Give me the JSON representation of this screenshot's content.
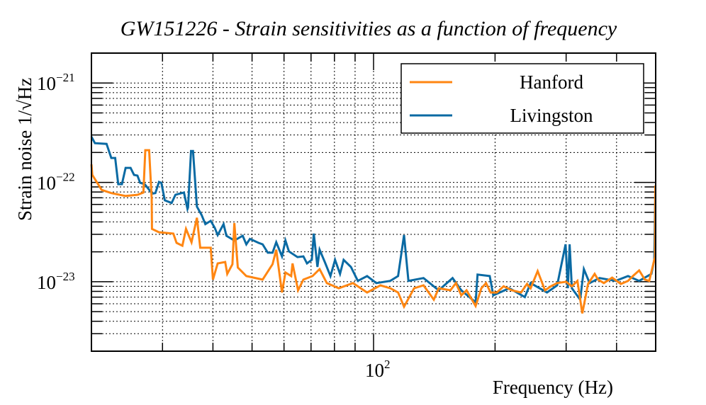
{
  "chart_data": {
    "type": "line",
    "title": "GW151226 - Strain sensitivities as a function of frequency",
    "xlabel": "Frequency (Hz)",
    "ylabel": "Strain noise 1/√Hz",
    "xscale": "log",
    "yscale": "log",
    "xlim": [
      20,
      500
    ],
    "ylim": [
      2e-24,
      2e-21
    ],
    "y_unit_multiplier": 1e-23,
    "grid": true,
    "legend_position": "top-right",
    "x_ticks": [
      {
        "value": 100,
        "base": "10",
        "exp": "2"
      }
    ],
    "y_ticks": [
      {
        "value": 1e-21,
        "base": "10",
        "exp": "−21"
      },
      {
        "value": 1e-22,
        "base": "10",
        "exp": "−22"
      },
      {
        "value": 1e-23,
        "base": "10",
        "exp": "−23"
      }
    ],
    "series": [
      {
        "name": "Hanford",
        "color": "#ff8612",
        "points": [
          [
            20,
            15.2
          ],
          [
            20.1,
            11.9
          ],
          [
            21.2,
            8.4
          ],
          [
            22.4,
            7.8
          ],
          [
            24.3,
            7.3
          ],
          [
            26,
            7.5
          ],
          [
            26.9,
            7.9
          ],
          [
            27.2,
            21.1
          ],
          [
            27.8,
            21.1
          ],
          [
            28.2,
            6.9
          ],
          [
            28.25,
            3.4
          ],
          [
            29.4,
            3.15
          ],
          [
            31.9,
            3.05
          ],
          [
            32.5,
            2.46
          ],
          [
            33.6,
            2.3
          ],
          [
            34.3,
            3.4
          ],
          [
            35.4,
            2.5
          ],
          [
            36.5,
            4.4
          ],
          [
            37.2,
            2.2
          ],
          [
            39.5,
            2.2
          ],
          [
            40,
            1.05
          ],
          [
            41.1,
            1.53
          ],
          [
            42.9,
            1.58
          ],
          [
            43.4,
            1.2
          ],
          [
            44.7,
            1.5
          ],
          [
            45.2,
            3.9
          ],
          [
            46.1,
            1.39
          ],
          [
            48.4,
            1.14
          ],
          [
            53.1,
            1.05
          ],
          [
            56.2,
            1.5
          ],
          [
            57.4,
            2.1
          ],
          [
            59.3,
            0.78
          ],
          [
            60.5,
            1.24
          ],
          [
            62.5,
            1.14
          ],
          [
            63,
            1.53
          ],
          [
            65,
            0.82
          ],
          [
            67,
            1.05
          ],
          [
            70.6,
            1.14
          ],
          [
            73.5,
            1.34
          ],
          [
            76.6,
            0.97
          ],
          [
            82,
            0.86
          ],
          [
            88.9,
            0.97
          ],
          [
            96.4,
            0.78
          ],
          [
            104,
            0.92
          ],
          [
            110,
            0.86
          ],
          [
            115,
            0.78
          ],
          [
            119,
            0.56
          ],
          [
            126,
            0.86
          ],
          [
            133,
            0.92
          ],
          [
            141,
            0.66
          ],
          [
            145,
            0.86
          ],
          [
            155,
            0.82
          ],
          [
            160,
            0.97
          ],
          [
            165,
            0.73
          ],
          [
            170,
            0.82
          ],
          [
            179,
            0.57
          ],
          [
            185,
            0.86
          ],
          [
            190,
            0.97
          ],
          [
            195,
            0.78
          ],
          [
            202,
            0.78
          ],
          [
            210,
            0.9
          ],
          [
            220,
            0.82
          ],
          [
            232,
            0.78
          ],
          [
            240,
            0.95
          ],
          [
            245,
            0.86
          ],
          [
            255,
            1.28
          ],
          [
            266,
            0.82
          ],
          [
            275,
            0.9
          ],
          [
            285,
            0.97
          ],
          [
            300,
            1.0
          ],
          [
            310,
            0.9
          ],
          [
            320,
            1.02
          ],
          [
            329,
            0.48
          ],
          [
            340,
            0.95
          ],
          [
            353,
            1.2
          ],
          [
            360,
            1.05
          ],
          [
            372,
            0.97
          ],
          [
            390,
            1.1
          ],
          [
            410,
            0.95
          ],
          [
            427,
            1.02
          ],
          [
            440,
            1.15
          ],
          [
            455,
            1.3
          ],
          [
            470,
            1.05
          ],
          [
            482,
            1.02
          ],
          [
            498,
            1.77
          ],
          [
            499,
            9.3
          ]
        ]
      },
      {
        "name": "Livingston",
        "color": "#0a6aa3",
        "points": [
          [
            20,
            28.8
          ],
          [
            20.4,
            24.8
          ],
          [
            21.8,
            24.4
          ],
          [
            22.4,
            17.6
          ],
          [
            22.9,
            17.6
          ],
          [
            23.3,
            9.6
          ],
          [
            23.8,
            9.6
          ],
          [
            24.3,
            14.0
          ],
          [
            25,
            14.0
          ],
          [
            25.5,
            11.9
          ],
          [
            26,
            11.7
          ],
          [
            26.4,
            9.9
          ],
          [
            27.1,
            9.6
          ],
          [
            28.3,
            7.7
          ],
          [
            28.8,
            7.8
          ],
          [
            29.4,
            10.1
          ],
          [
            29.8,
            9.9
          ],
          [
            30.4,
            6.6
          ],
          [
            31.6,
            6.2
          ],
          [
            32.3,
            7.5
          ],
          [
            33.9,
            7.9
          ],
          [
            34.6,
            5.4
          ],
          [
            34.7,
            5.6
          ],
          [
            35.3,
            20.7
          ],
          [
            35.7,
            20.7
          ],
          [
            36.5,
            5.7
          ],
          [
            37.5,
            4.7
          ],
          [
            38.3,
            3.8
          ],
          [
            39.5,
            4.1
          ],
          [
            40.4,
            3.5
          ],
          [
            41.1,
            2.95
          ],
          [
            42.5,
            3.8
          ],
          [
            43.2,
            2.9
          ],
          [
            45.2,
            2.6
          ],
          [
            47.4,
            2.9
          ],
          [
            48.4,
            2.38
          ],
          [
            49.4,
            2.7
          ],
          [
            51.9,
            2.46
          ],
          [
            53.1,
            2.38
          ],
          [
            54.7,
            1.96
          ],
          [
            56.2,
            1.96
          ],
          [
            57.4,
            2.5
          ],
          [
            59.3,
            1.8
          ],
          [
            60.5,
            2.6
          ],
          [
            61.7,
            2.02
          ],
          [
            64.8,
            1.77
          ],
          [
            67,
            1.8
          ],
          [
            68.4,
            1.53
          ],
          [
            70.3,
            1.66
          ],
          [
            71.1,
            3.05
          ],
          [
            72.6,
            1.41
          ],
          [
            73.5,
            2.1
          ],
          [
            75.7,
            1.58
          ],
          [
            78.2,
            1.14
          ],
          [
            80.3,
            1.66
          ],
          [
            82.6,
            1.2
          ],
          [
            84.3,
            1.66
          ],
          [
            87.9,
            1.41
          ],
          [
            91.4,
            1.02
          ],
          [
            96.4,
            1.14
          ],
          [
            101.6,
            0.97
          ],
          [
            110,
            1.02
          ],
          [
            115,
            1.14
          ],
          [
            119,
            2.95
          ],
          [
            122,
            1.02
          ],
          [
            133,
            1.09
          ],
          [
            145,
            0.82
          ],
          [
            157,
            1.09
          ],
          [
            165,
            0.82
          ],
          [
            179,
            0.62
          ],
          [
            181,
            1.18
          ],
          [
            194,
            1.14
          ],
          [
            198,
            0.73
          ],
          [
            217,
            0.86
          ],
          [
            237,
            0.7
          ],
          [
            245,
            0.97
          ],
          [
            269,
            0.78
          ],
          [
            285,
            0.92
          ],
          [
            299,
            2.38
          ],
          [
            303,
            0.86
          ],
          [
            306,
            2.38
          ],
          [
            310,
            0.86
          ],
          [
            325,
            0.66
          ],
          [
            332,
            1.34
          ],
          [
            343,
            0.97
          ],
          [
            363,
            1.09
          ],
          [
            398,
            1.02
          ],
          [
            427,
            1.14
          ],
          [
            455,
            1.02
          ],
          [
            488,
            1.2
          ],
          [
            496,
            1.66
          ],
          [
            499,
            8.1
          ]
        ]
      }
    ]
  }
}
